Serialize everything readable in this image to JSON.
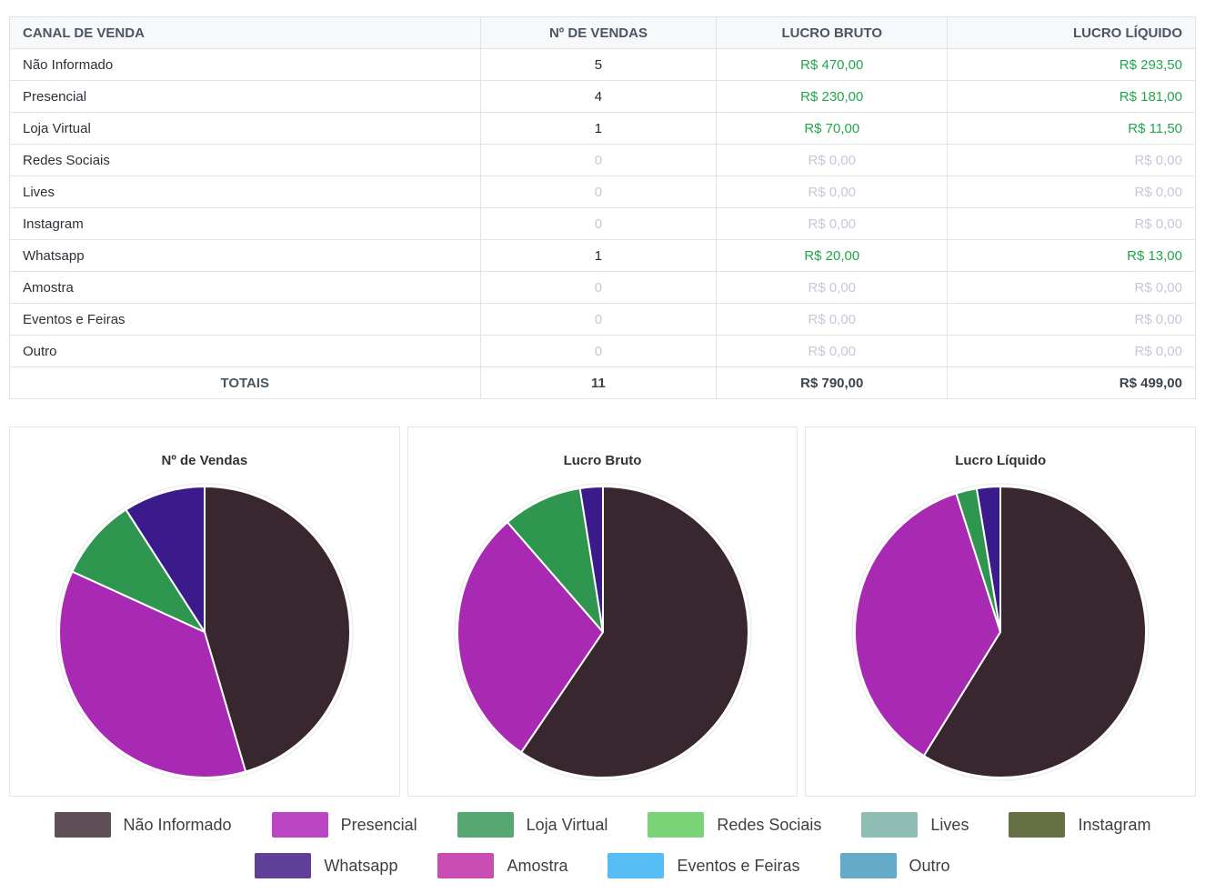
{
  "table": {
    "columns": [
      "CANAL DE VENDA",
      "Nº DE VENDAS",
      "LUCRO BRUTO",
      "LUCRO LÍQUIDO"
    ],
    "rows": [
      {
        "channel": "Não Informado",
        "vendas": "5",
        "bruto": "R$ 470,00",
        "liquido": "R$ 293,50",
        "muted": false
      },
      {
        "channel": "Presencial",
        "vendas": "4",
        "bruto": "R$ 230,00",
        "liquido": "R$ 181,00",
        "muted": false
      },
      {
        "channel": "Loja Virtual",
        "vendas": "1",
        "bruto": "R$ 70,00",
        "liquido": "R$ 11,50",
        "muted": false
      },
      {
        "channel": "Redes Sociais",
        "vendas": "0",
        "bruto": "R$ 0,00",
        "liquido": "R$ 0,00",
        "muted": true
      },
      {
        "channel": "Lives",
        "vendas": "0",
        "bruto": "R$ 0,00",
        "liquido": "R$ 0,00",
        "muted": true
      },
      {
        "channel": "Instagram",
        "vendas": "0",
        "bruto": "R$ 0,00",
        "liquido": "R$ 0,00",
        "muted": true
      },
      {
        "channel": "Whatsapp",
        "vendas": "1",
        "bruto": "R$ 20,00",
        "liquido": "R$ 13,00",
        "muted": false
      },
      {
        "channel": "Amostra",
        "vendas": "0",
        "bruto": "R$ 0,00",
        "liquido": "R$ 0,00",
        "muted": true
      },
      {
        "channel": "Eventos e Feiras",
        "vendas": "0",
        "bruto": "R$ 0,00",
        "liquido": "R$ 0,00",
        "muted": true
      },
      {
        "channel": "Outro",
        "vendas": "0",
        "bruto": "R$ 0,00",
        "liquido": "R$ 0,00",
        "muted": true
      }
    ],
    "totals": {
      "label": "TOTAIS",
      "vendas": "11",
      "bruto": "R$ 790,00",
      "liquido": "R$ 499,00"
    }
  },
  "chart_data": [
    {
      "type": "pie",
      "title": "Nº de Vendas",
      "labels": [
        "Não Informado",
        "Presencial",
        "Loja Virtual",
        "Whatsapp"
      ],
      "values": [
        5,
        4,
        1,
        1
      ],
      "colors": [
        "#38272f",
        "#a829b2",
        "#2f9650",
        "#3b1a8c"
      ],
      "start_angle_deg": 0,
      "direction": "clockwise",
      "legend_position": "none"
    },
    {
      "type": "pie",
      "title": "Lucro Bruto",
      "labels": [
        "Não Informado",
        "Presencial",
        "Loja Virtual",
        "Whatsapp"
      ],
      "values": [
        470,
        230,
        70,
        20
      ],
      "colors": [
        "#38272f",
        "#a829b2",
        "#2f9650",
        "#3b1a8c"
      ],
      "start_angle_deg": 0,
      "direction": "clockwise",
      "legend_position": "none"
    },
    {
      "type": "pie",
      "title": "Lucro Líquido",
      "labels": [
        "Não Informado",
        "Presencial",
        "Loja Virtual",
        "Whatsapp"
      ],
      "values": [
        293.5,
        181,
        11.5,
        13
      ],
      "colors": [
        "#38272f",
        "#a829b2",
        "#2f9650",
        "#3b1a8c"
      ],
      "start_angle_deg": 0,
      "direction": "clockwise",
      "legend_position": "none"
    }
  ],
  "legend": {
    "rows": [
      [
        {
          "label": "Não Informado",
          "swatch": "#5f5058"
        },
        {
          "label": "Presencial",
          "swatch": "#bb45c3"
        },
        {
          "label": "Loja Virtual",
          "swatch": "#57a771"
        },
        {
          "label": "Redes Sociais",
          "swatch": "#79d377"
        },
        {
          "label": "Lives",
          "swatch": "#8ebdb3"
        },
        {
          "label": "Instagram",
          "swatch": "#657045"
        }
      ],
      [
        {
          "label": "Whatsapp",
          "swatch": "#5f4099"
        },
        {
          "label": "Amostra",
          "swatch": "#c94db2"
        },
        {
          "label": "Eventos e Feiras",
          "swatch": "#55bdf4"
        },
        {
          "label": "Outro",
          "swatch": "#63abc9"
        }
      ]
    ]
  },
  "colors": {
    "positive_money": "#21a64a",
    "muted_value": "#c5c8da",
    "header_text": "#4b5563",
    "header_bg": "#f7f8fa",
    "table_border": "#e0e3e8"
  }
}
